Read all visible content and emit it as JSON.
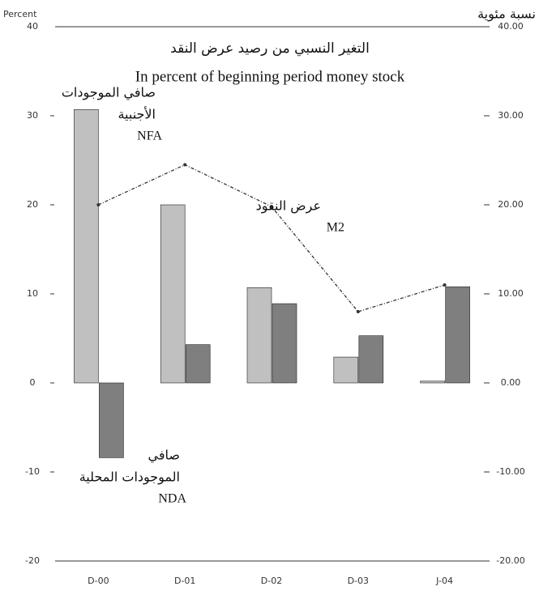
{
  "chart_data": {
    "type": "bar",
    "title": "التغير النسبي من رصيد عرض النقد",
    "subtitle": "In percent of beginning period money stock",
    "y_label": "Percent",
    "y2_label": "نسبة مئوية",
    "categories": [
      "D-00",
      "D-01",
      "D-02",
      "D-03",
      "J-04"
    ],
    "series": [
      {
        "name": "NFA",
        "color": "#c0c0c0",
        "values": [
          30.7,
          20,
          10.7,
          2.9,
          0.2
        ],
        "annotation": [
          "صافي الموجودات",
          "الأجنبية"
        ]
      },
      {
        "name": "NDA",
        "color": "#7f7f7f",
        "values": [
          -8.4,
          4.3,
          8.9,
          5.3,
          10.8
        ],
        "annotation": [
          "صافي",
          "الموجودات المحلية"
        ]
      },
      {
        "name": "M2",
        "type": "line",
        "color": "#333333",
        "values": [
          20,
          24.5,
          19.8,
          8.0,
          11.0
        ],
        "annotation": [
          "عرض النقود"
        ]
      }
    ],
    "ylim": [
      -20,
      40
    ],
    "yticks": [
      -20,
      -10,
      0,
      10,
      20,
      30,
      40
    ],
    "y2lim": [
      -20,
      40
    ],
    "y2ticks": [
      {
        "value": -20,
        "label": "-20.00"
      },
      {
        "value": -10,
        "label": "-10.00"
      },
      {
        "value": 0,
        "label": "0.00"
      },
      {
        "value": 10,
        "label": "10.00"
      },
      {
        "value": 20,
        "label": "20.00"
      },
      {
        "value": 30,
        "label": "30.00"
      },
      {
        "value": 40,
        "label": "40.00"
      }
    ]
  }
}
